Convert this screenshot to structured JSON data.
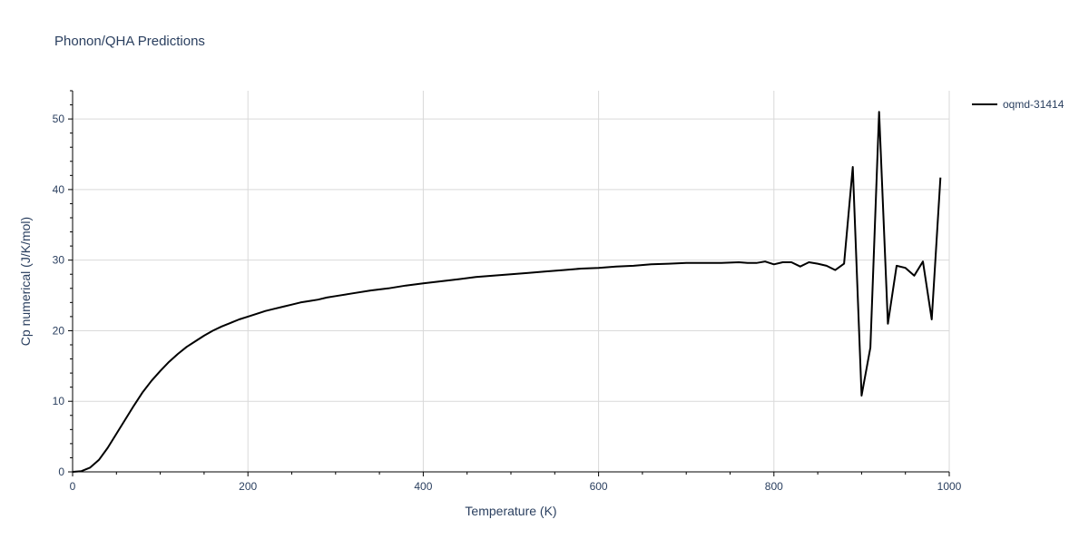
{
  "chart_data": {
    "type": "line",
    "title": "Phonon/QHA Predictions",
    "xlabel": "Temperature (K)",
    "ylabel": "Cp numerical (J/K/mol)",
    "xlim": [
      0,
      1000
    ],
    "ylim": [
      0,
      54
    ],
    "xticks": [
      0,
      200,
      400,
      600,
      800,
      1000
    ],
    "yticks": [
      0,
      10,
      20,
      30,
      40,
      50
    ],
    "grid": true,
    "legend_position": "top-right",
    "colors": {
      "series": "#000000",
      "grid": "#d9d9d9",
      "axis": "#000000",
      "text": "#2a3f5f"
    },
    "series": [
      {
        "name": "oqmd-31414",
        "x": [
          0,
          10,
          20,
          30,
          40,
          50,
          60,
          70,
          80,
          90,
          100,
          110,
          120,
          130,
          140,
          150,
          160,
          170,
          180,
          190,
          200,
          210,
          220,
          230,
          240,
          250,
          260,
          270,
          280,
          290,
          300,
          320,
          340,
          360,
          380,
          400,
          420,
          440,
          460,
          480,
          500,
          520,
          540,
          560,
          580,
          600,
          620,
          640,
          660,
          680,
          700,
          720,
          740,
          760,
          770,
          780,
          790,
          800,
          810,
          820,
          830,
          840,
          850,
          860,
          870,
          880,
          890,
          900,
          910,
          920,
          930,
          940,
          950,
          960,
          970,
          980,
          990
        ],
        "y": [
          0,
          0.1,
          0.6,
          1.7,
          3.4,
          5.4,
          7.4,
          9.4,
          11.3,
          12.9,
          14.3,
          15.6,
          16.7,
          17.7,
          18.5,
          19.3,
          20.0,
          20.6,
          21.1,
          21.6,
          22.0,
          22.4,
          22.8,
          23.1,
          23.4,
          23.7,
          24.0,
          24.2,
          24.4,
          24.7,
          24.9,
          25.3,
          25.7,
          26.0,
          26.4,
          26.7,
          27.0,
          27.3,
          27.6,
          27.8,
          28.0,
          28.2,
          28.4,
          28.6,
          28.8,
          28.9,
          29.1,
          29.2,
          29.4,
          29.5,
          29.6,
          29.6,
          29.6,
          29.7,
          29.6,
          29.6,
          29.8,
          29.4,
          29.7,
          29.7,
          29.1,
          29.7,
          29.5,
          29.2,
          28.6,
          29.5,
          43.2,
          10.8,
          17.6,
          51.0,
          21.0,
          29.2,
          28.9,
          27.8,
          29.8,
          21.6,
          41.7
        ]
      }
    ]
  }
}
